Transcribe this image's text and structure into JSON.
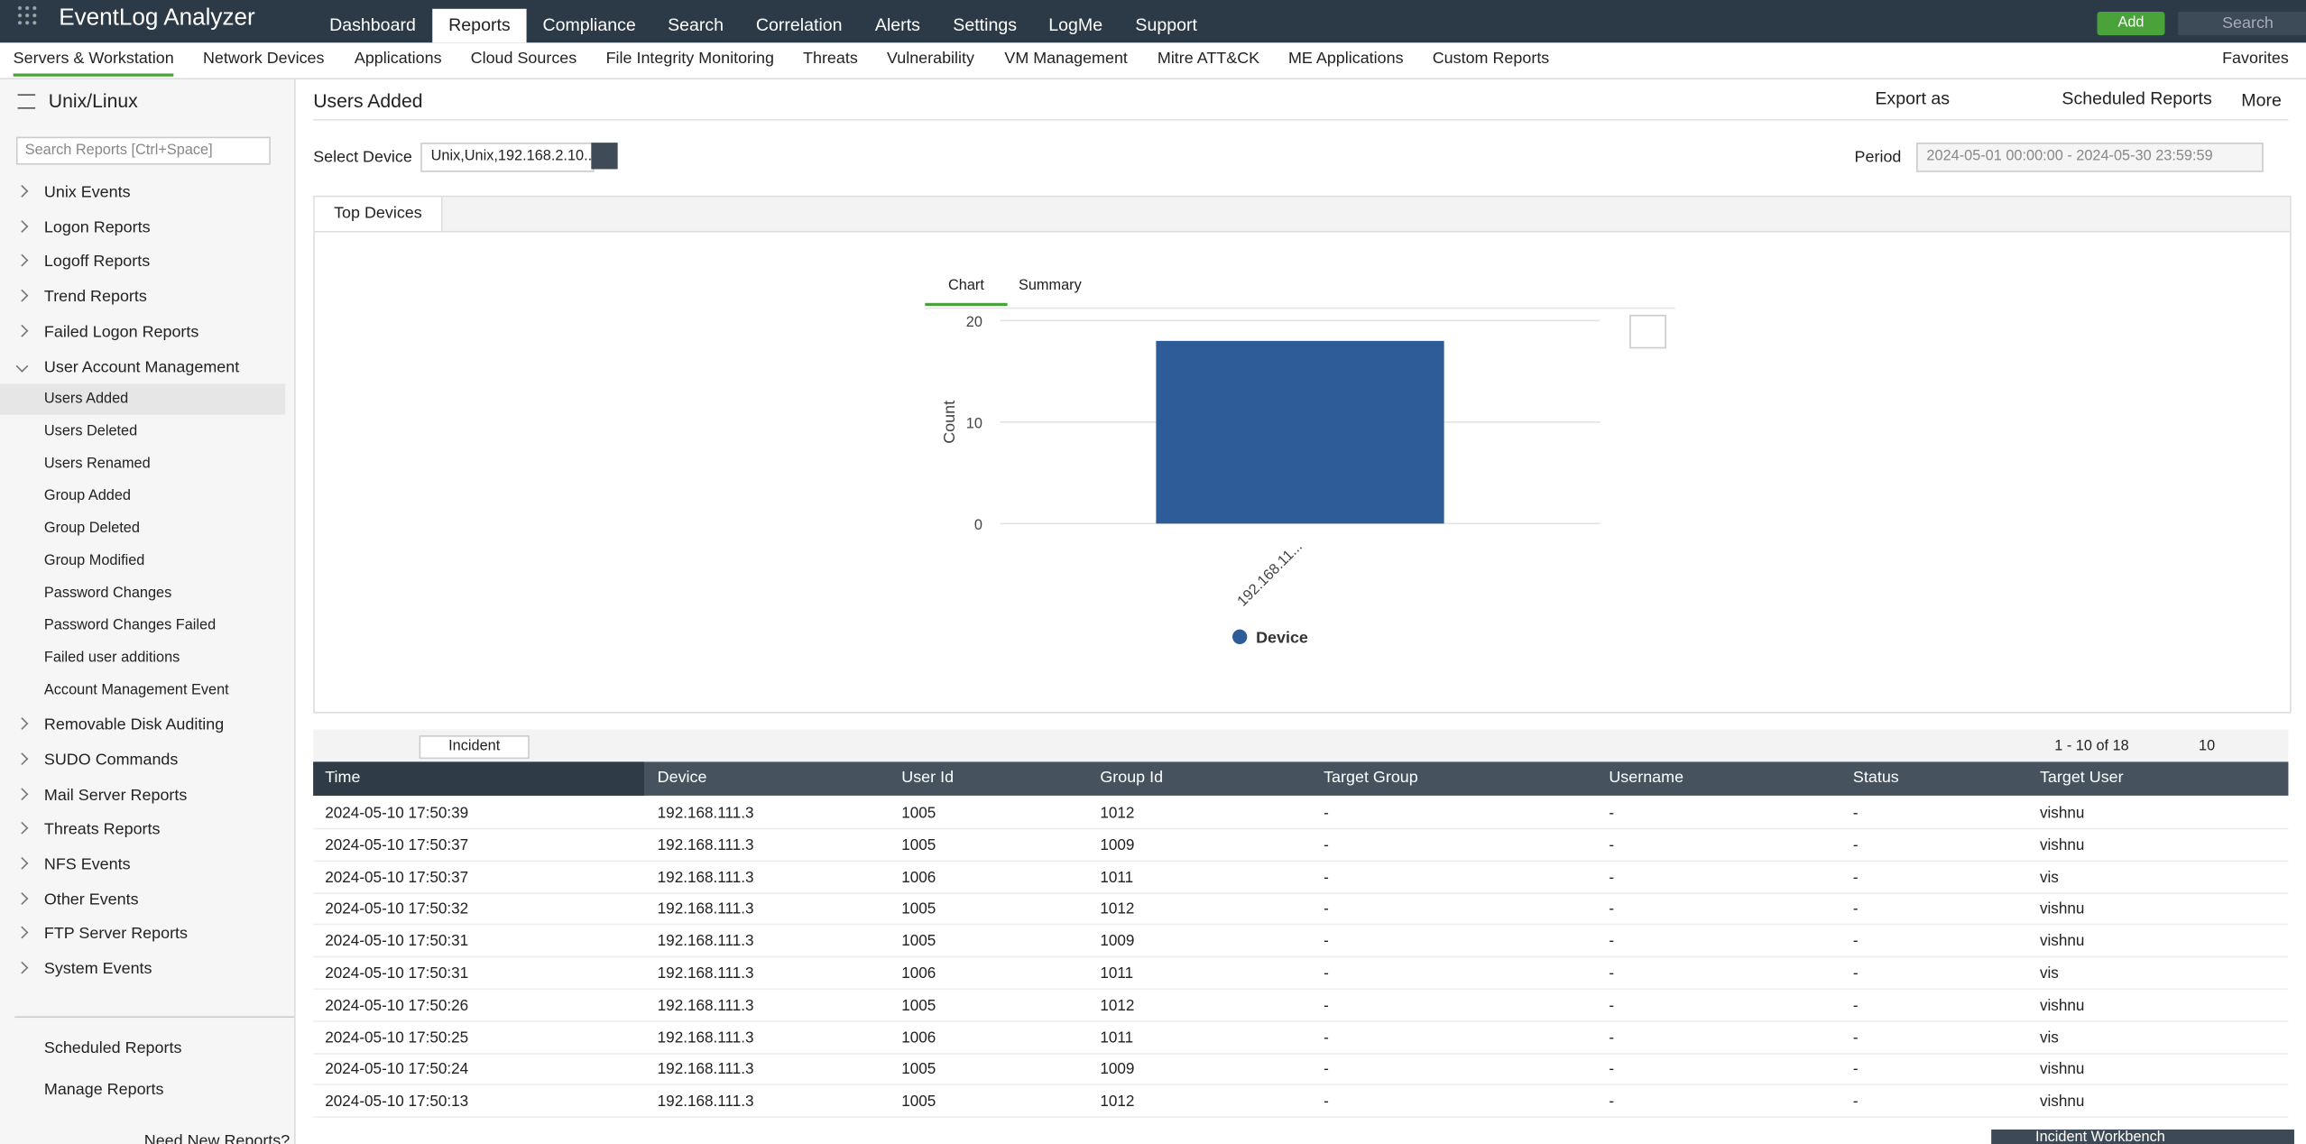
{
  "header": {
    "title": "EventLog Analyzer",
    "tabs": [
      "Dashboard",
      "Reports",
      "Compliance",
      "Search",
      "Correlation",
      "Alerts",
      "Settings",
      "LogMe",
      "Support"
    ],
    "add": "Add",
    "search": "Search"
  },
  "subnav": {
    "items": [
      "Servers & Workstation",
      "Network Devices",
      "Applications",
      "Cloud Sources",
      "File Integrity Monitoring",
      "Threats",
      "Vulnerability",
      "VM Management",
      "Mitre ATT&CK",
      "ME Applications",
      "Custom Reports"
    ],
    "favorites": "Favorites"
  },
  "sidebar": {
    "title": "Unix/Linux",
    "search": "Search Reports [Ctrl+Space]",
    "groups": [
      {
        "label": "Unix Events"
      },
      {
        "label": "Logon Reports"
      },
      {
        "label": "Logoff Reports"
      },
      {
        "label": "Trend Reports"
      },
      {
        "label": "Failed Logon Reports"
      },
      {
        "label": "User Account Management",
        "items": [
          "Users Added",
          "Users Deleted",
          "Users Renamed",
          "Group Added",
          "Group Deleted",
          "Group Modified",
          "Password Changes",
          "Password Changes Failed",
          "Failed user additions",
          "Account Management Event"
        ]
      },
      {
        "label": "Removable Disk Auditing"
      },
      {
        "label": "SUDO Commands"
      },
      {
        "label": "Mail Server Reports"
      },
      {
        "label": "Threats Reports"
      },
      {
        "label": "NFS Events"
      },
      {
        "label": "Other Events"
      },
      {
        "label": "FTP Server Reports"
      },
      {
        "label": "System Events"
      }
    ],
    "footer": [
      "Scheduled Reports",
      "Manage Reports",
      "Need New Reports?"
    ]
  },
  "report": {
    "title": "Users Added",
    "export": "Export as",
    "scheduled": "Scheduled Reports",
    "more": "More",
    "device_label": "Select Device",
    "device": "Unix,Unix,192.168.2.10...",
    "period_label": "Period",
    "period": "2024-05-01 00:00:00 - 2024-05-30 23:59:59",
    "panel_tab": "Top Devices",
    "chart_tabs": [
      "Chart",
      "Summary"
    ]
  },
  "chart_data": {
    "type": "bar",
    "ylabel": "Count",
    "categories": [
      "192.168.11..."
    ],
    "series": [
      {
        "name": "Device",
        "color": "#2d5c98",
        "values": [
          18
        ]
      }
    ],
    "ylim": [
      0,
      20
    ],
    "yticks": [
      0,
      10,
      20
    ],
    "grid": true
  },
  "table": {
    "incident": "Incident",
    "pager": "1 - 10 of 18",
    "page_size": "10",
    "columns": [
      "Time",
      "Device",
      "User Id",
      "Group Id",
      "Target Group",
      "Username",
      "Status",
      "Target User"
    ],
    "rows": [
      [
        "2024-05-10 17:50:39",
        "192.168.111.3",
        "1005",
        "1012",
        "-",
        "-",
        "-",
        "vishnu"
      ],
      [
        "2024-05-10 17:50:37",
        "192.168.111.3",
        "1005",
        "1009",
        "-",
        "-",
        "-",
        "vishnu"
      ],
      [
        "2024-05-10 17:50:37",
        "192.168.111.3",
        "1006",
        "1011",
        "-",
        "-",
        "-",
        "vis"
      ],
      [
        "2024-05-10 17:50:32",
        "192.168.111.3",
        "1005",
        "1012",
        "-",
        "-",
        "-",
        "vishnu"
      ],
      [
        "2024-05-10 17:50:31",
        "192.168.111.3",
        "1005",
        "1009",
        "-",
        "-",
        "-",
        "vishnu"
      ],
      [
        "2024-05-10 17:50:31",
        "192.168.111.3",
        "1006",
        "1011",
        "-",
        "-",
        "-",
        "vis"
      ],
      [
        "2024-05-10 17:50:26",
        "192.168.111.3",
        "1005",
        "1012",
        "-",
        "-",
        "-",
        "vishnu"
      ],
      [
        "2024-05-10 17:50:25",
        "192.168.111.3",
        "1006",
        "1011",
        "-",
        "-",
        "-",
        "vis"
      ],
      [
        "2024-05-10 17:50:24",
        "192.168.111.3",
        "1005",
        "1009",
        "-",
        "-",
        "-",
        "vishnu"
      ],
      [
        "2024-05-10 17:50:13",
        "192.168.111.3",
        "1005",
        "1012",
        "-",
        "-",
        "-",
        "vishnu"
      ]
    ]
  },
  "workbench": "Incident Workbench"
}
